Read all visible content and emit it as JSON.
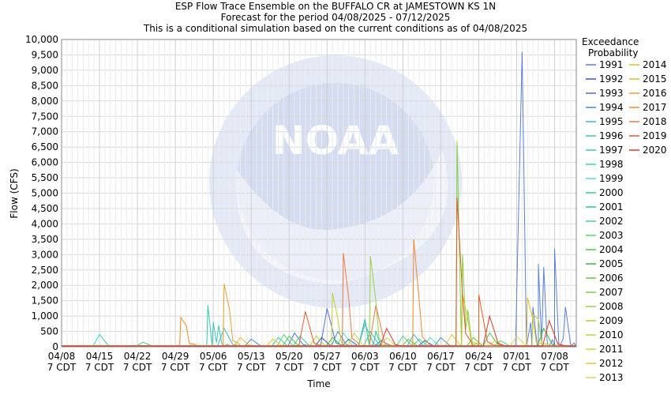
{
  "chart_data": {
    "type": "line",
    "title": [
      "ESP Flow Trace Ensemble on the BUFFALO CR at JAMESTOWN KS 1N",
      "Forecast for the period 04/08/2025 - 07/12/2025",
      "This is a conditional simulation based on the current conditions as of 04/08/2025"
    ],
    "xlabel": "Time",
    "ylabel": "Flow (CFS)",
    "ylim": [
      0,
      10000
    ],
    "xlim": [
      "04/08/2025",
      "07/12/2025"
    ],
    "y_ticks": [
      "0",
      "500",
      "1,000",
      "1,500",
      "2,000",
      "2,500",
      "3,000",
      "3,500",
      "4,000",
      "4,500",
      "5,000",
      "5,500",
      "6,000",
      "6,500",
      "7,000",
      "7,500",
      "8,000",
      "8,500",
      "9,000",
      "9,500",
      "10,000"
    ],
    "x_ticks": [
      {
        "line1": "04/08",
        "line2": "7 CDT"
      },
      {
        "line1": "04/15",
        "line2": "7 CDT"
      },
      {
        "line1": "04/22",
        "line2": "7 CDT"
      },
      {
        "line1": "04/29",
        "line2": "7 CDT"
      },
      {
        "line1": "05/06",
        "line2": "7 CDT"
      },
      {
        "line1": "05/13",
        "line2": "7 CDT"
      },
      {
        "line1": "05/20",
        "line2": "7 CDT"
      },
      {
        "line1": "05/27",
        "line2": "7 CDT"
      },
      {
        "line1": "06/03",
        "line2": "7 CDT"
      },
      {
        "line1": "06/10",
        "line2": "7 CDT"
      },
      {
        "line1": "06/17",
        "line2": "7 CDT"
      },
      {
        "line1": "06/24",
        "line2": "7 CDT"
      },
      {
        "line1": "07/01",
        "line2": "7 CDT"
      },
      {
        "line1": "07/08",
        "line2": "7 CDT"
      }
    ],
    "grid": true,
    "legend_title": [
      "Exceedance",
      "Probability"
    ],
    "legend_placement": "right",
    "series": [
      {
        "name": "1991",
        "color": "#5b7fd6",
        "baseline": 20,
        "peaks": [
          [
            85,
            9600
          ],
          [
            87,
            1300
          ],
          [
            88,
            2700
          ],
          [
            89,
            2600
          ],
          [
            91,
            3200
          ],
          [
            93,
            1300
          ]
        ]
      },
      {
        "name": "1992",
        "color": "#3a56c8",
        "baseline": 20,
        "peaks": [
          [
            48,
            300
          ],
          [
            53,
            250
          ],
          [
            67,
            200
          ]
        ]
      },
      {
        "name": "1993",
        "color": "#4f6edb",
        "baseline": 30,
        "peaks": [
          [
            43,
            450
          ],
          [
            49,
            1250
          ],
          [
            59,
            200
          ]
        ]
      },
      {
        "name": "1994",
        "color": "#3f8fd8",
        "baseline": 25,
        "peaks": [
          [
            35,
            250
          ],
          [
            51,
            500
          ],
          [
            70,
            300
          ]
        ]
      },
      {
        "name": "1995",
        "color": "#3cb4d8",
        "baseline": 25,
        "peaks": [
          [
            56,
            750
          ],
          [
            65,
            400
          ]
        ]
      },
      {
        "name": "1996",
        "color": "#36c2cc",
        "baseline": 30,
        "peaks": [
          [
            30,
            600
          ],
          [
            57,
            500
          ]
        ]
      },
      {
        "name": "1997",
        "color": "#35c9b2",
        "baseline": 30,
        "peaks": [
          [
            27,
            1350
          ],
          [
            28,
            800
          ],
          [
            29,
            700
          ]
        ]
      },
      {
        "name": "1998",
        "color": "#2fd6c0",
        "baseline": 20,
        "peaks": [
          [
            7,
            400
          ],
          [
            40,
            300
          ]
        ]
      },
      {
        "name": "1999",
        "color": "#4ee0d0",
        "baseline": 20,
        "peaks": [
          [
            52,
            450
          ],
          [
            68,
            300
          ]
        ]
      },
      {
        "name": "2000",
        "color": "#2fcfa0",
        "baseline": 25,
        "peaks": [
          [
            15,
            150
          ],
          [
            44,
            350
          ]
        ]
      },
      {
        "name": "2001",
        "color": "#28c890",
        "baseline": 20,
        "peaks": [
          [
            56,
            900
          ],
          [
            58,
            500
          ]
        ]
      },
      {
        "name": "2002",
        "color": "#46d68c",
        "baseline": 20,
        "peaks": [
          [
            63,
            350
          ],
          [
            81,
            200
          ]
        ]
      },
      {
        "name": "2003",
        "color": "#55dc70",
        "baseline": 20,
        "peaks": [
          [
            41,
            400
          ],
          [
            66,
            250
          ]
        ]
      },
      {
        "name": "2004",
        "color": "#4bc84a",
        "baseline": 25,
        "peaks": [
          [
            42,
            350
          ],
          [
            79,
            450
          ]
        ]
      },
      {
        "name": "2005",
        "color": "#3fb43f",
        "baseline": 20,
        "peaks": [
          [
            50,
            300
          ],
          [
            89,
            600
          ]
        ]
      },
      {
        "name": "2006",
        "color": "#66cc33",
        "baseline": 20,
        "peaks": [
          [
            64,
            250
          ],
          [
            76,
            300
          ]
        ]
      },
      {
        "name": "2007",
        "color": "#80d040",
        "baseline": 30,
        "peaks": [
          [
            73,
            6700
          ],
          [
            74,
            3000
          ],
          [
            75,
            1200
          ]
        ]
      },
      {
        "name": "2008",
        "color": "#9ad040",
        "baseline": 25,
        "peaks": [
          [
            57,
            2950
          ],
          [
            58,
            1500
          ]
        ]
      },
      {
        "name": "2009",
        "color": "#b2d030",
        "baseline": 20,
        "peaks": [
          [
            47,
            350
          ],
          [
            87,
            1050
          ],
          [
            88,
            900
          ]
        ]
      },
      {
        "name": "2010",
        "color": "#c8d030",
        "baseline": 25,
        "peaks": [
          [
            50,
            1750
          ],
          [
            51,
            900
          ]
        ]
      },
      {
        "name": "2011",
        "color": "#d6d040",
        "baseline": 20,
        "peaks": [
          [
            54,
            450
          ],
          [
            72,
            400
          ]
        ]
      },
      {
        "name": "2012",
        "color": "#e0cc33",
        "baseline": 20,
        "peaks": [
          [
            39,
            250
          ],
          [
            80,
            200
          ]
        ]
      },
      {
        "name": "2013",
        "color": "#e6d455",
        "baseline": 25,
        "peaks": [
          [
            60,
            300
          ],
          [
            84,
            350
          ]
        ]
      },
      {
        "name": "2014",
        "color": "#dcc020",
        "baseline": 30,
        "peaks": [
          [
            74,
            1700
          ],
          [
            75,
            900
          ]
        ]
      },
      {
        "name": "2015",
        "color": "#e6b820",
        "baseline": 30,
        "peaks": [
          [
            33,
            300
          ],
          [
            86,
            1600
          ],
          [
            87,
            900
          ]
        ]
      },
      {
        "name": "2016",
        "color": "#e8a030",
        "baseline": 30,
        "peaks": [
          [
            30,
            2050
          ],
          [
            31,
            1200
          ]
        ]
      },
      {
        "name": "2017",
        "color": "#ec8a30",
        "baseline": 30,
        "peaks": [
          [
            22,
            950
          ],
          [
            23,
            700
          ],
          [
            65,
            3500
          ],
          [
            66,
            1500
          ]
        ]
      },
      {
        "name": "2018",
        "color": "#ee7840",
        "baseline": 30,
        "peaks": [
          [
            52,
            3050
          ],
          [
            53,
            1600
          ],
          [
            58,
            1350
          ]
        ]
      },
      {
        "name": "2019",
        "color": "#e05a2a",
        "baseline": 30,
        "peaks": [
          [
            45,
            1150
          ],
          [
            73,
            4850
          ],
          [
            74,
            1700
          ],
          [
            77,
            1700
          ]
        ]
      },
      {
        "name": "2020",
        "color": "#d83a2a",
        "baseline": 25,
        "peaks": [
          [
            60,
            600
          ],
          [
            79,
            1000
          ],
          [
            90,
            850
          ]
        ]
      }
    ]
  }
}
